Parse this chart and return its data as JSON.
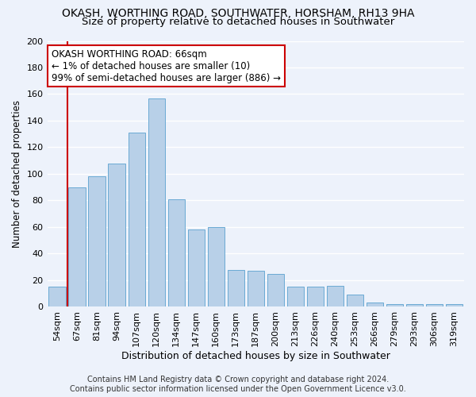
{
  "title1": "OKASH, WORTHING ROAD, SOUTHWATER, HORSHAM, RH13 9HA",
  "title2": "Size of property relative to detached houses in Southwater",
  "xlabel": "Distribution of detached houses by size in Southwater",
  "ylabel": "Number of detached properties",
  "categories": [
    "54sqm",
    "67sqm",
    "81sqm",
    "94sqm",
    "107sqm",
    "120sqm",
    "134sqm",
    "147sqm",
    "160sqm",
    "173sqm",
    "187sqm",
    "200sqm",
    "213sqm",
    "226sqm",
    "240sqm",
    "253sqm",
    "266sqm",
    "279sqm",
    "293sqm",
    "306sqm",
    "319sqm"
  ],
  "values": [
    15,
    90,
    98,
    108,
    131,
    157,
    81,
    58,
    60,
    28,
    27,
    25,
    15,
    15,
    16,
    9,
    3,
    2,
    2,
    2,
    2
  ],
  "bar_color": "#b8d0e8",
  "bar_edge_color": "#6aaad4",
  "highlight_bar_index": 1,
  "highlight_line_color": "#cc0000",
  "annotation_text": "OKASH WORTHING ROAD: 66sqm\n← 1% of detached houses are smaller (10)\n99% of semi-detached houses are larger (886) →",
  "annotation_box_color": "#ffffff",
  "annotation_box_edge": "#cc0000",
  "ylim": [
    0,
    200
  ],
  "yticks": [
    0,
    20,
    40,
    60,
    80,
    100,
    120,
    140,
    160,
    180,
    200
  ],
  "footer1": "Contains HM Land Registry data © Crown copyright and database right 2024.",
  "footer2": "Contains public sector information licensed under the Open Government Licence v3.0.",
  "background_color": "#edf2fb",
  "grid_color": "#ffffff",
  "title1_fontsize": 10,
  "title2_fontsize": 9.5,
  "xlabel_fontsize": 9,
  "ylabel_fontsize": 8.5,
  "tick_fontsize": 8,
  "annotation_fontsize": 8.5,
  "footer_fontsize": 7
}
